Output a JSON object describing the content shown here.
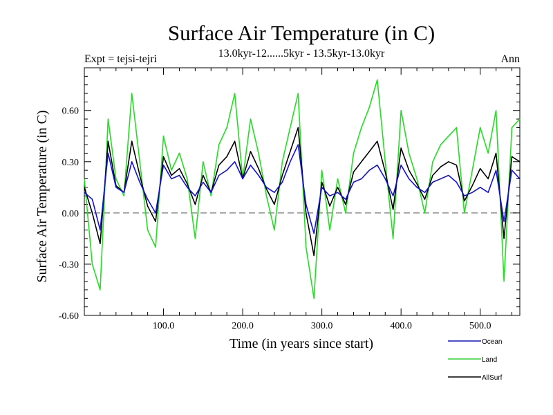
{
  "chart_data": {
    "type": "line",
    "title": "Surface Air Temperature (in C)",
    "subtitle": "13.0kyr-12......5kyr - 13.5kyr-13.0kyr",
    "left_note": "Expt = tejsi-tejri",
    "right_note": "Ann",
    "xlabel": "Time (in years since start)",
    "ylabel": "Surface Air Temperature (in C)",
    "xlim": [
      0,
      550
    ],
    "ylim": [
      -0.6,
      0.85
    ],
    "x_ticks": [
      100,
      200,
      300,
      400,
      500
    ],
    "x_tick_labels": [
      "100.0",
      "200.0",
      "300.0",
      "400.0",
      "500.0"
    ],
    "y_ticks": [
      -0.6,
      -0.3,
      0.0,
      0.3,
      0.6
    ],
    "y_tick_labels": [
      "-0.60",
      "-0.30",
      "0.00",
      "0.30",
      "0.60"
    ],
    "zero_line": true,
    "legend_position": "bottom-right, outside plot",
    "series": [
      {
        "name": "Ocean",
        "color": "#1010e0",
        "x": [
          0,
          10,
          20,
          30,
          40,
          50,
          60,
          70,
          80,
          90,
          100,
          110,
          120,
          130,
          140,
          150,
          160,
          170,
          180,
          190,
          200,
          210,
          220,
          230,
          240,
          250,
          260,
          270,
          280,
          290,
          300,
          310,
          320,
          330,
          340,
          350,
          360,
          370,
          380,
          390,
          400,
          410,
          420,
          430,
          440,
          450,
          460,
          470,
          480,
          490,
          500,
          510,
          520,
          530,
          540,
          550
        ],
        "values": [
          0.12,
          0.08,
          -0.1,
          0.35,
          0.15,
          0.12,
          0.3,
          0.18,
          0.08,
          0.0,
          0.28,
          0.2,
          0.22,
          0.15,
          0.1,
          0.18,
          0.12,
          0.22,
          0.25,
          0.3,
          0.2,
          0.28,
          0.22,
          0.15,
          0.12,
          0.18,
          0.3,
          0.4,
          0.05,
          -0.12,
          0.15,
          0.1,
          0.12,
          0.08,
          0.18,
          0.2,
          0.25,
          0.28,
          0.2,
          0.1,
          0.28,
          0.2,
          0.15,
          0.12,
          0.18,
          0.2,
          0.22,
          0.18,
          0.1,
          0.12,
          0.15,
          0.12,
          0.25,
          -0.05,
          0.25,
          0.2
        ]
      },
      {
        "name": "Land",
        "color": "#20e020",
        "x": [
          0,
          10,
          20,
          30,
          40,
          50,
          60,
          70,
          80,
          90,
          100,
          110,
          120,
          130,
          140,
          150,
          160,
          170,
          180,
          190,
          200,
          210,
          220,
          230,
          240,
          250,
          260,
          270,
          280,
          290,
          300,
          310,
          320,
          330,
          340,
          350,
          360,
          370,
          380,
          390,
          400,
          410,
          420,
          430,
          440,
          450,
          460,
          470,
          480,
          490,
          500,
          510,
          520,
          530,
          540,
          550
        ],
        "values": [
          0.2,
          -0.3,
          -0.45,
          0.55,
          0.2,
          0.1,
          0.7,
          0.3,
          -0.1,
          -0.2,
          0.45,
          0.25,
          0.35,
          0.2,
          -0.15,
          0.3,
          0.1,
          0.4,
          0.5,
          0.7,
          0.2,
          0.55,
          0.35,
          0.1,
          -0.1,
          0.3,
          0.5,
          0.7,
          -0.2,
          -0.5,
          0.25,
          -0.1,
          0.2,
          0.0,
          0.35,
          0.5,
          0.62,
          0.78,
          0.3,
          -0.15,
          0.6,
          0.35,
          0.2,
          0.0,
          0.3,
          0.4,
          0.45,
          0.5,
          0.0,
          0.25,
          0.5,
          0.35,
          0.6,
          -0.4,
          0.5,
          0.55
        ]
      },
      {
        "name": "AllSurf",
        "color": "#000000",
        "x": [
          0,
          10,
          20,
          30,
          40,
          50,
          60,
          70,
          80,
          90,
          100,
          110,
          120,
          130,
          140,
          150,
          160,
          170,
          180,
          190,
          200,
          210,
          220,
          230,
          240,
          250,
          260,
          270,
          280,
          290,
          300,
          310,
          320,
          330,
          340,
          350,
          360,
          370,
          380,
          390,
          400,
          410,
          420,
          430,
          440,
          450,
          460,
          470,
          480,
          490,
          500,
          510,
          520,
          530,
          540,
          550
        ],
        "values": [
          0.15,
          0.0,
          -0.18,
          0.42,
          0.16,
          0.12,
          0.42,
          0.22,
          0.04,
          -0.05,
          0.33,
          0.22,
          0.26,
          0.17,
          0.05,
          0.22,
          0.12,
          0.28,
          0.33,
          0.42,
          0.2,
          0.36,
          0.26,
          0.14,
          0.05,
          0.22,
          0.36,
          0.5,
          0.0,
          -0.25,
          0.18,
          0.04,
          0.15,
          0.05,
          0.24,
          0.3,
          0.36,
          0.42,
          0.24,
          0.02,
          0.38,
          0.25,
          0.17,
          0.08,
          0.22,
          0.27,
          0.3,
          0.28,
          0.07,
          0.16,
          0.26,
          0.2,
          0.35,
          -0.15,
          0.33,
          0.3
        ]
      }
    ]
  }
}
